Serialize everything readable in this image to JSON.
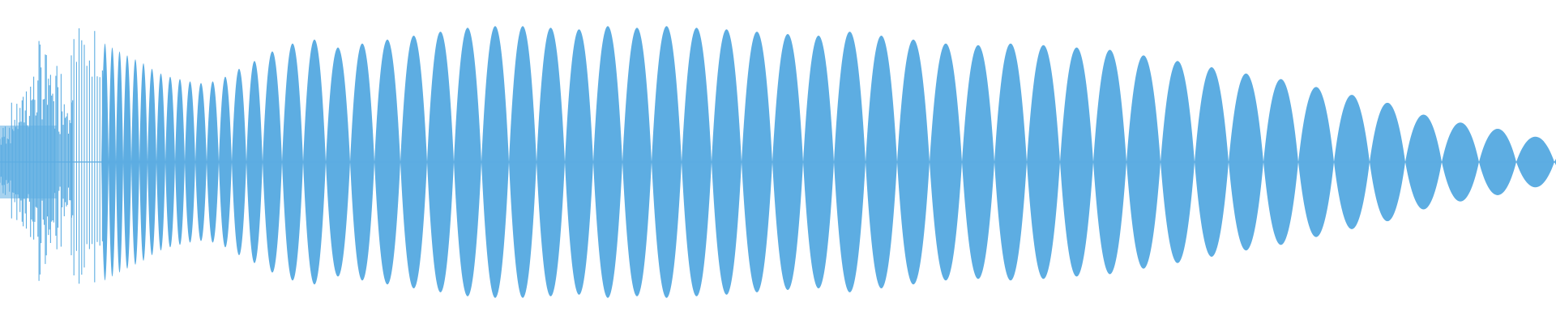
{
  "waveform": {
    "color": "#5dade2",
    "background": "#ffffff",
    "lobes_visible": 51
  }
}
